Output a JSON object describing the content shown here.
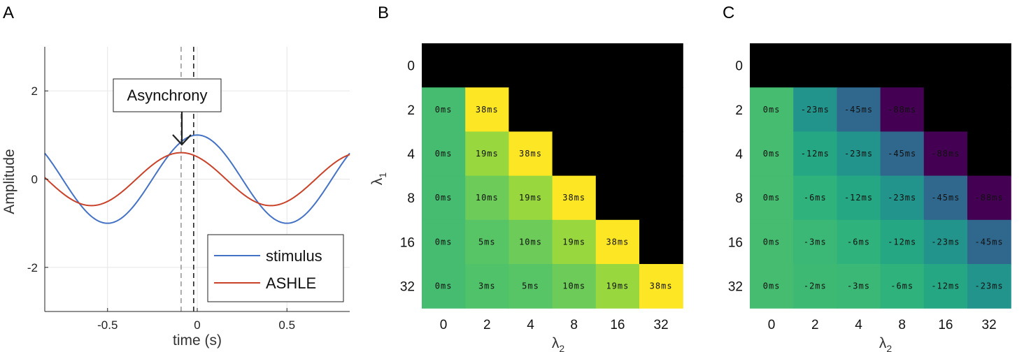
{
  "panels": {
    "a": "A",
    "b": "B",
    "c": "C"
  },
  "chart_data": [
    {
      "type": "line",
      "xlabel": "time (s)",
      "ylabel": "Amplitude",
      "xlim": [
        -0.85,
        0.85
      ],
      "ylim": [
        -3,
        3
      ],
      "xticks": [
        "-0.5",
        "0",
        "0.5"
      ],
      "yticks": [
        "2",
        "0",
        "-2"
      ],
      "grid": true,
      "series": [
        {
          "name": "stimulus",
          "color": "#4472c4",
          "amplitude": 1.0,
          "period": 1.0,
          "phase_shift": 0
        },
        {
          "name": "ASHLE",
          "color": "#c9432a",
          "amplitude": 0.6,
          "period": 1.0,
          "phase_shift": -0.09
        }
      ],
      "vlines": [
        {
          "x": -0.09,
          "color": "#9a9a9a"
        },
        {
          "x": -0.02,
          "color": "#222222"
        }
      ],
      "annotation": "Asynchrony",
      "legend": "bottom-right"
    },
    {
      "type": "heatmap",
      "xlabel": "λ₂",
      "ylabel": "λ₁",
      "xcategories": [
        "0",
        "2",
        "4",
        "8",
        "16",
        "32"
      ],
      "ycategories": [
        "0",
        "2",
        "4",
        "8",
        "16",
        "32"
      ],
      "cells": [
        [
          null,
          null,
          null,
          null,
          null,
          null
        ],
        [
          "0ms",
          "38ms",
          null,
          null,
          null,
          null
        ],
        [
          "0ms",
          "19ms",
          "38ms",
          null,
          null,
          null
        ],
        [
          "0ms",
          "10ms",
          "19ms",
          "38ms",
          null,
          null
        ],
        [
          "0ms",
          "5ms",
          "10ms",
          "19ms",
          "38ms",
          null
        ],
        [
          "0ms",
          "3ms",
          "5ms",
          "10ms",
          "19ms",
          "38ms"
        ]
      ],
      "values": [
        [
          null,
          null,
          null,
          null,
          null,
          null
        ],
        [
          0,
          38,
          null,
          null,
          null,
          null
        ],
        [
          0,
          19,
          38,
          null,
          null,
          null
        ],
        [
          0,
          10,
          19,
          38,
          null,
          null
        ],
        [
          0,
          5,
          10,
          19,
          38,
          null
        ],
        [
          0,
          3,
          5,
          10,
          19,
          38
        ]
      ],
      "colormap": "viridis",
      "clim": [
        -88,
        38
      ],
      "empty_color": "#000000"
    },
    {
      "type": "heatmap",
      "xlabel": "λ₂",
      "ylabel": "",
      "xcategories": [
        "0",
        "2",
        "4",
        "8",
        "16",
        "32"
      ],
      "ycategories": [
        "0",
        "2",
        "4",
        "8",
        "16",
        "32"
      ],
      "cells": [
        [
          null,
          null,
          null,
          null,
          null,
          null
        ],
        [
          "0ms",
          "-23ms",
          "-45ms",
          "-88ms",
          null,
          null
        ],
        [
          "0ms",
          "-12ms",
          "-23ms",
          "-45ms",
          "-88ms",
          null
        ],
        [
          "0ms",
          "-6ms",
          "-12ms",
          "-23ms",
          "-45ms",
          "-88ms"
        ],
        [
          "0ms",
          "-3ms",
          "-6ms",
          "-12ms",
          "-23ms",
          "-45ms"
        ],
        [
          "0ms",
          "-2ms",
          "-3ms",
          "-6ms",
          "-12ms",
          "-23ms"
        ]
      ],
      "values": [
        [
          null,
          null,
          null,
          null,
          null,
          null
        ],
        [
          0,
          -23,
          -45,
          -88,
          null,
          null
        ],
        [
          0,
          -12,
          -23,
          -45,
          -88,
          null
        ],
        [
          0,
          -6,
          -12,
          -23,
          -45,
          -88
        ],
        [
          0,
          -3,
          -6,
          -12,
          -23,
          -45
        ],
        [
          0,
          -2,
          -3,
          -6,
          -12,
          -23
        ]
      ],
      "colormap": "viridis",
      "clim": [
        -88,
        38
      ],
      "empty_color": "#000000"
    }
  ]
}
